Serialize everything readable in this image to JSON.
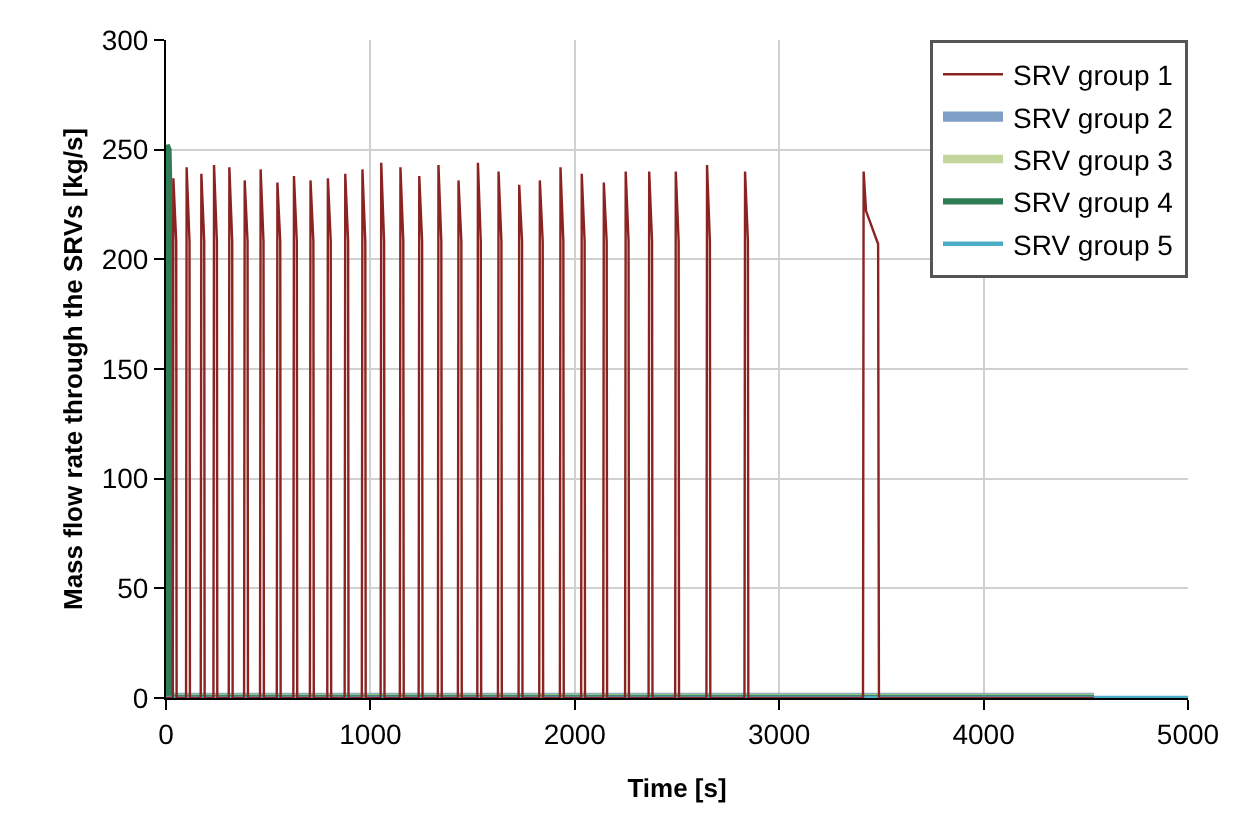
{
  "chart_data": {
    "type": "line",
    "xlabel": "Time [s]",
    "ylabel": "Mass flow rate through the SRVs [kg/s]",
    "xlim": [
      0,
      5000
    ],
    "xticks": [
      0,
      1000,
      2000,
      3000,
      4000,
      5000
    ],
    "ylim": [
      0,
      300
    ],
    "yticks": [
      0,
      50,
      100,
      150,
      200,
      250,
      300
    ],
    "grid": true,
    "legend": "top right",
    "marker": "none",
    "line_style": "solid",
    "series": [
      {
        "name": "SRV group 1",
        "color": "#8b2323",
        "x": [
          0,
          33,
          36,
          50,
          52,
          98,
          101,
          115,
          117,
          170,
          173,
          187,
          189,
          232,
          235,
          249,
          251,
          307,
          310,
          324,
          326,
          382,
          385,
          399,
          401,
          460,
          463,
          477,
          479,
          542,
          545,
          559,
          561,
          623,
          626,
          640,
          642,
          704,
          707,
          721,
          723,
          789,
          792,
          806,
          808,
          874,
          877,
          891,
          893,
          958,
          961,
          975,
          977,
          1050,
          1053,
          1067,
          1069,
          1144,
          1147,
          1161,
          1163,
          1236,
          1239,
          1253,
          1255,
          1330,
          1333,
          1347,
          1349,
          1428,
          1431,
          1445,
          1447,
          1523,
          1526,
          1540,
          1542,
          1624,
          1627,
          1641,
          1643,
          1725,
          1728,
          1742,
          1744,
          1826,
          1829,
          1843,
          1845,
          1927,
          1930,
          1944,
          1946,
          2031,
          2034,
          2048,
          2050,
          2139,
          2142,
          2156,
          2158,
          2246,
          2249,
          2263,
          2265,
          2361,
          2364,
          2378,
          2380,
          2491,
          2494,
          2508,
          2510,
          2644,
          2647,
          2661,
          2663,
          2830,
          2833,
          2847,
          2849,
          3410,
          3413,
          3425,
          3484,
          3488,
          4540
        ],
        "values": [
          0,
          0,
          237,
          208,
          0,
          0,
          242,
          208,
          0,
          0,
          239,
          208,
          0,
          0,
          243,
          208,
          0,
          0,
          242,
          208,
          0,
          0,
          236,
          208,
          0,
          0,
          241,
          208,
          0,
          0,
          235,
          208,
          0,
          0,
          238,
          208,
          0,
          0,
          236,
          208,
          0,
          0,
          237,
          208,
          0,
          0,
          239,
          208,
          0,
          0,
          241,
          208,
          0,
          0,
          244,
          208,
          0,
          0,
          242,
          208,
          0,
          0,
          238,
          208,
          0,
          0,
          243,
          208,
          0,
          0,
          236,
          208,
          0,
          0,
          244,
          208,
          0,
          0,
          240,
          208,
          0,
          0,
          234,
          208,
          0,
          0,
          236,
          208,
          0,
          0,
          242,
          208,
          0,
          0,
          239,
          208,
          0,
          0,
          235,
          208,
          0,
          0,
          240,
          208,
          0,
          0,
          240,
          208,
          0,
          0,
          240,
          208,
          0,
          0,
          243,
          208,
          0,
          0,
          240,
          208,
          0,
          0,
          240,
          222,
          207,
          0,
          0
        ]
      },
      {
        "name": "SRV group 2",
        "color": "#7f9fc6",
        "x": [
          0,
          4540
        ],
        "values": [
          0,
          0
        ]
      },
      {
        "name": "SRV group 3",
        "color": "#c3d69b",
        "x": [
          0,
          4540
        ],
        "values": [
          0,
          0
        ]
      },
      {
        "name": "SRV group 4",
        "color": "#2e7d55",
        "x": [
          0,
          3,
          12,
          20,
          24,
          4540
        ],
        "values": [
          0,
          252,
          250,
          210,
          0,
          0
        ]
      },
      {
        "name": "SRV group 5",
        "color": "#4bacc6",
        "x": [
          0,
          5000
        ],
        "values": [
          0,
          0
        ]
      }
    ]
  }
}
